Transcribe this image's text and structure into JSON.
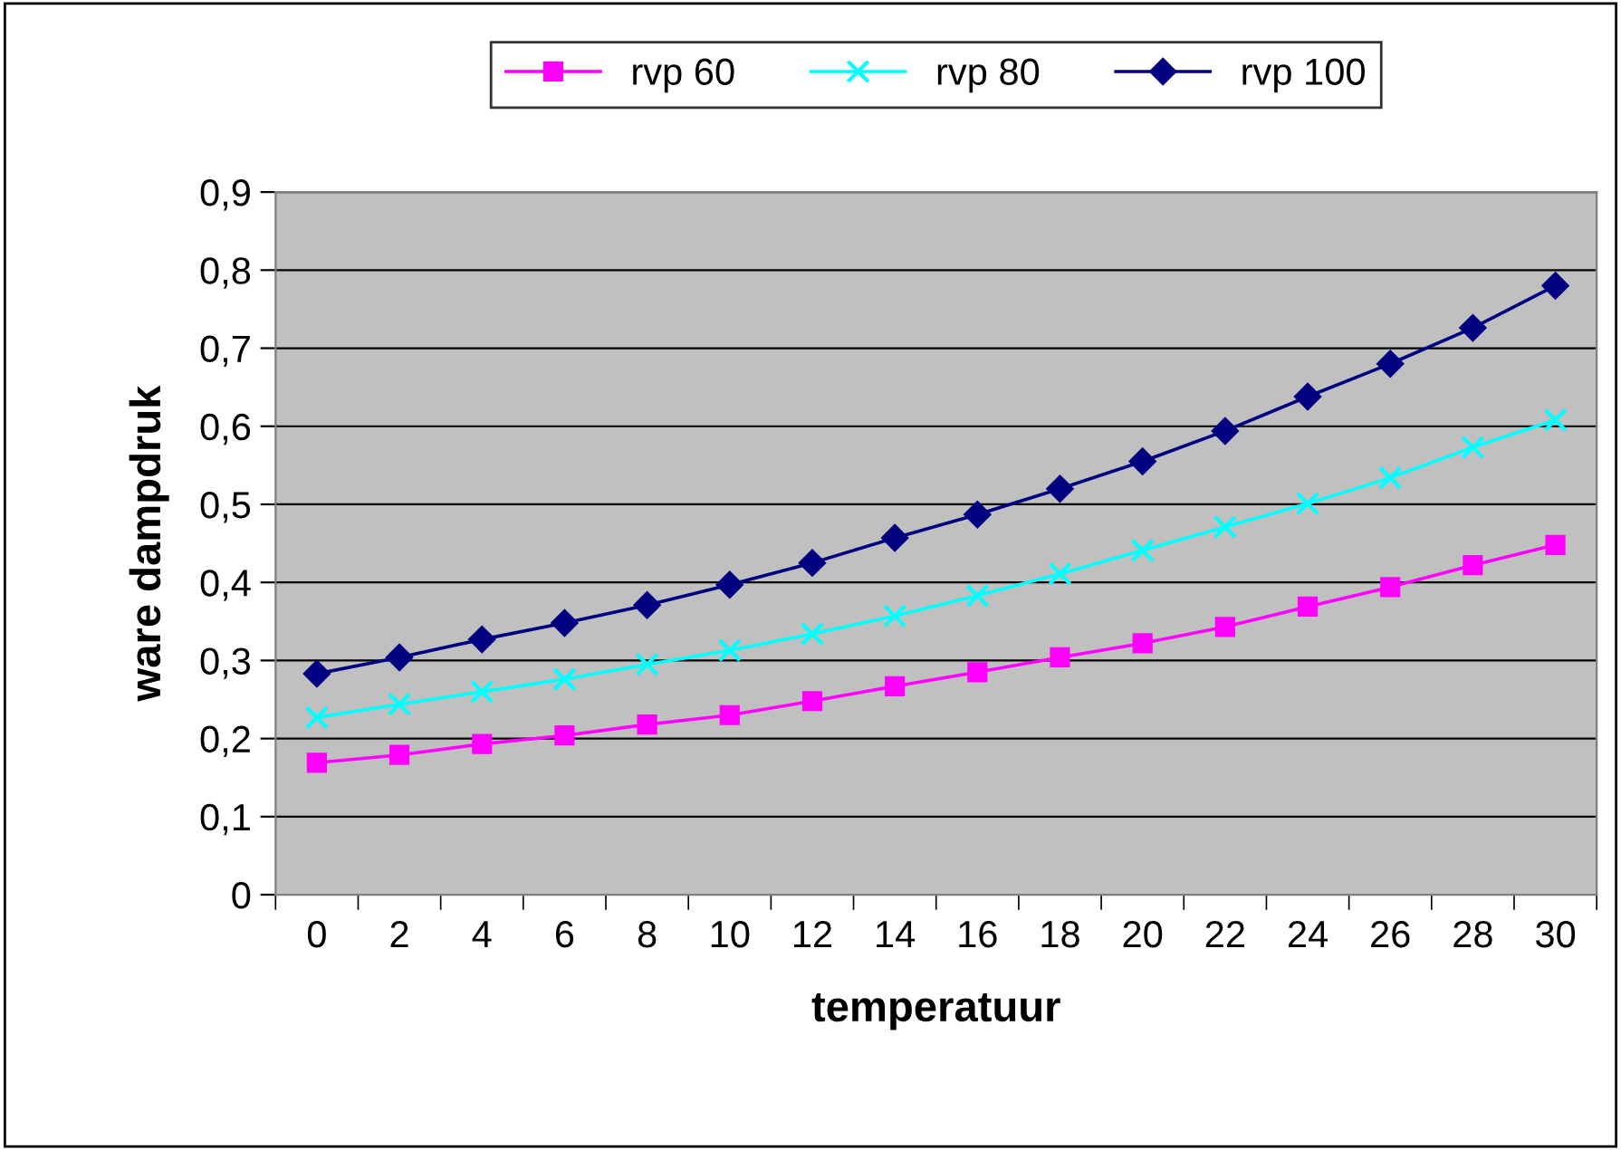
{
  "chart_data": {
    "type": "line",
    "xlabel": "temperatuur",
    "ylabel": "ware dampdruk",
    "categories": [
      "0",
      "2",
      "4",
      "6",
      "8",
      "10",
      "12",
      "14",
      "16",
      "18",
      "20",
      "22",
      "24",
      "26",
      "28",
      "30"
    ],
    "series": [
      {
        "name": "rvp 60",
        "color": "#ff00ff",
        "marker": "square",
        "values": [
          0.169,
          0.179,
          0.193,
          0.204,
          0.218,
          0.23,
          0.248,
          0.267,
          0.285,
          0.304,
          0.322,
          0.343,
          0.369,
          0.394,
          0.422,
          0.448
        ]
      },
      {
        "name": "rvp 80",
        "color": "#00ffff",
        "marker": "cross",
        "values": [
          0.227,
          0.244,
          0.26,
          0.276,
          0.295,
          0.313,
          0.334,
          0.357,
          0.383,
          0.411,
          0.441,
          0.471,
          0.501,
          0.534,
          0.573,
          0.608
        ]
      },
      {
        "name": "rvp 100",
        "color": "#000080",
        "marker": "diamond",
        "values": [
          0.283,
          0.304,
          0.327,
          0.348,
          0.371,
          0.397,
          0.425,
          0.457,
          0.487,
          0.52,
          0.555,
          0.594,
          0.638,
          0.68,
          0.726,
          0.78
        ]
      }
    ],
    "ylim": [
      0,
      0.9
    ],
    "yticks": [
      0,
      {
        "value": 0.1,
        "label": "0,1"
      },
      {
        "value": 0.2,
        "label": "0,2"
      },
      {
        "value": 0.3,
        "label": "0,3"
      },
      {
        "value": 0.4,
        "label": "0,4"
      },
      {
        "value": 0.5,
        "label": "0,5"
      },
      {
        "value": 0.6,
        "label": "0,6"
      },
      {
        "value": 0.7,
        "label": "0,7"
      },
      {
        "value": 0.8,
        "label": "0,8"
      },
      {
        "value": 0.9,
        "label": "0,9"
      }
    ],
    "grid": "y",
    "legend": "top",
    "line_style": "solid"
  }
}
